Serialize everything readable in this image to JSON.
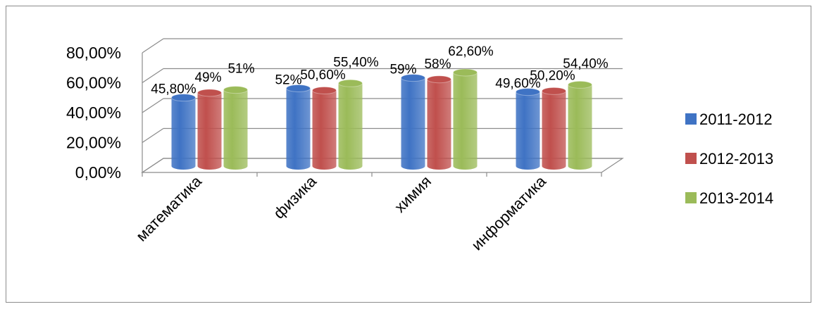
{
  "chart_data": {
    "type": "bar",
    "categories": [
      "математика",
      "физика",
      "химия",
      "информатика"
    ],
    "series": [
      {
        "name": "2011-2012",
        "color": "#3f73c4",
        "values": [
          45.8,
          52,
          59,
          49.6
        ],
        "labels": [
          "45,80%",
          "52%",
          "59%",
          "49,60%"
        ]
      },
      {
        "name": "2012-2013",
        "color": "#c0504d",
        "values": [
          49,
          50.6,
          58,
          50.2
        ],
        "labels": [
          "49%",
          "50,60%",
          "58%",
          "50,20%"
        ]
      },
      {
        "name": "2013-2014",
        "color": "#9bbb59",
        "values": [
          51,
          55.4,
          62.6,
          54.4
        ],
        "labels": [
          "51%",
          "55,40%",
          "62,60%",
          "54,40%"
        ]
      }
    ],
    "yticks": [
      "0,00%",
      "20,00%",
      "40,00%",
      "60,00%",
      "80,00%"
    ],
    "ylim": [
      0,
      80
    ],
    "grid": true,
    "legend": "right",
    "style": "3d-cylinder"
  }
}
